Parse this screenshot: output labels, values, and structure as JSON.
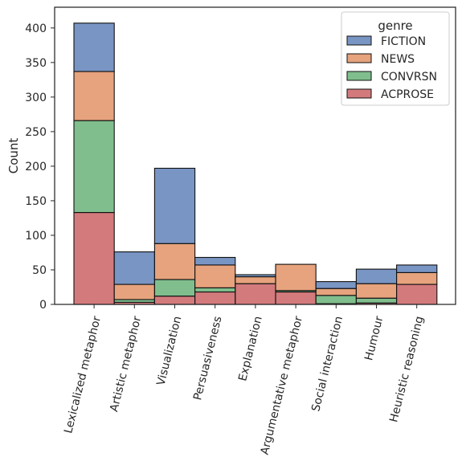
{
  "chart_data": {
    "type": "bar",
    "stacked": true,
    "ylabel": "Count",
    "xlabel": "",
    "ylim": [
      0,
      430
    ],
    "yticks": [
      0,
      50,
      100,
      150,
      200,
      250,
      300,
      350,
      400
    ],
    "grid": false,
    "categories": [
      "Lexicalized metaphor",
      "Artistic metaphor",
      "Visualization",
      "Persuasiveness",
      "Explanation",
      "Argumentative metaphor",
      "Social interaction",
      "Humour",
      "Heuristic reasoning"
    ],
    "legend": {
      "title": "genre",
      "placement": "top-right"
    },
    "series": [
      {
        "name": "ACPROSE",
        "color": "#c44e52",
        "values": [
          133,
          3,
          12,
          18,
          30,
          18,
          1,
          2,
          29
        ]
      },
      {
        "name": "CONVRSN",
        "color": "#55a868",
        "values": [
          133,
          4,
          24,
          6,
          0,
          2,
          12,
          7,
          0
        ]
      },
      {
        "name": "NEWS",
        "color": "#dd8452",
        "values": [
          71,
          22,
          52,
          33,
          10,
          38,
          10,
          21,
          17
        ]
      },
      {
        "name": "FICTION",
        "color": "#4c72b0",
        "values": [
          70,
          47,
          109,
          11,
          3,
          0,
          10,
          21,
          11
        ]
      }
    ]
  }
}
